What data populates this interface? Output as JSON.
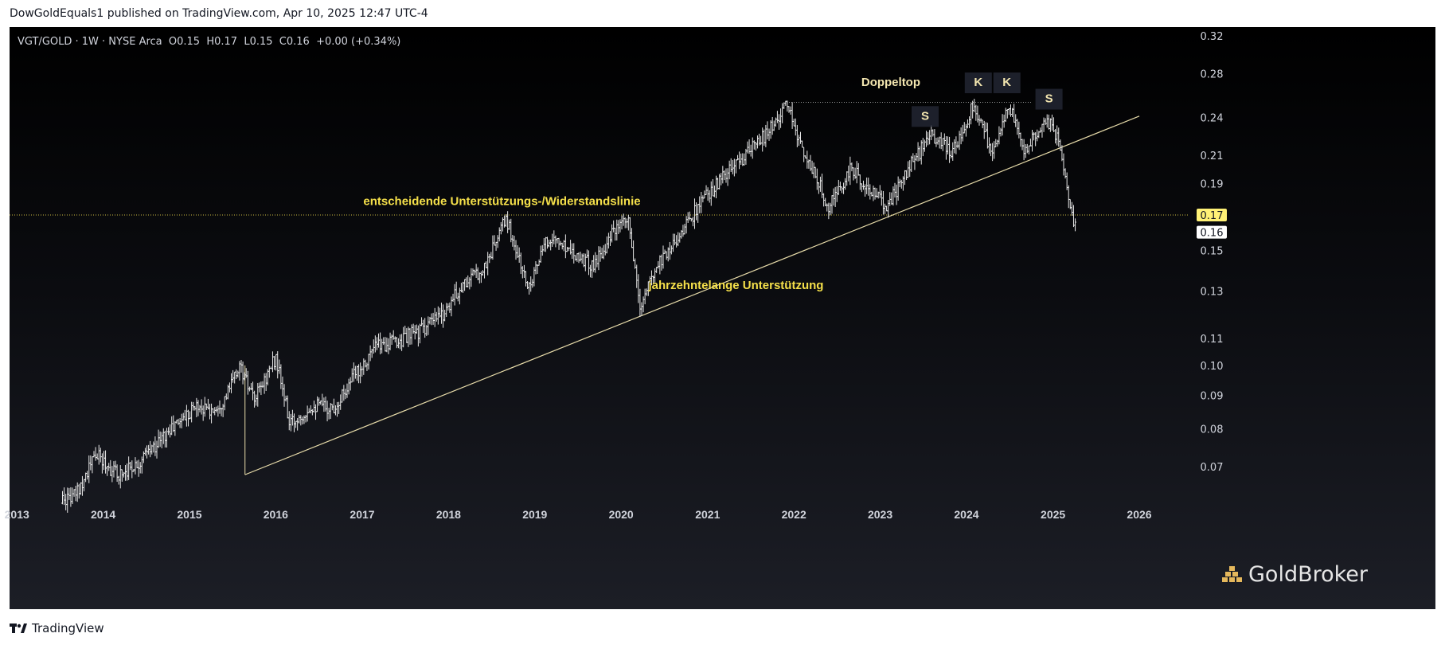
{
  "header": {
    "published_line": "DowGoldEquals1 published on TradingView.com, Apr 10, 2025 12:47 UTC-4"
  },
  "chart": {
    "symbol_line": "VGT/GOLD · 1W · NYSE Arca  O0.15  H0.17  L0.15  C0.16  +0.00 (+0.34%)"
  },
  "watermark": {
    "brand": "GoldBroker",
    "icon": "gold-bars-icon"
  },
  "footer": {
    "brand": "TradingView",
    "icon": "tradingview-logo-icon"
  },
  "colors": {
    "background_top": "#000000",
    "background_bottom": "#1c1e26",
    "bars": "#e8e8e8",
    "trendline": "#e8dcaa",
    "annotation_yellow": "#f5e04a",
    "label_box": "#222633",
    "price_label_bg": "#fff176"
  },
  "chart_data": {
    "type": "ohlc",
    "scale": "log",
    "ylim": [
      0.062,
      0.33
    ],
    "xlim": [
      "2012-12-01",
      "2026-06-15"
    ],
    "y_ticks": [
      "0.32",
      "0.28",
      "0.24",
      "0.21",
      "0.19",
      "0.17",
      "0.16",
      "0.15",
      "0.13",
      "0.11",
      "0.10",
      "0.09",
      "0.08",
      "0.07"
    ],
    "x_ticks": [
      "2013",
      "2014",
      "2015",
      "2016",
      "2017",
      "2018",
      "2019",
      "2020",
      "2021",
      "2022",
      "2023",
      "2024",
      "2025",
      "2026"
    ],
    "price_labels": {
      "support_level": "0.17",
      "last_close": "0.16"
    },
    "series": [
      {
        "points": [
          [
            "2013-06-01",
            0.062
          ],
          [
            "2013-09-01",
            0.063
          ],
          [
            "2013-12-01",
            0.073
          ],
          [
            "2014-03-01",
            0.068
          ],
          [
            "2014-06-01",
            0.071
          ],
          [
            "2014-09-01",
            0.077
          ],
          [
            "2014-12-01",
            0.083
          ],
          [
            "2015-02-01",
            0.087
          ],
          [
            "2015-04-01",
            0.085
          ],
          [
            "2015-06-01",
            0.089
          ],
          [
            "2015-08-01",
            0.1
          ],
          [
            "2015-10-01",
            0.088
          ],
          [
            "2016-01-01",
            0.103
          ],
          [
            "2016-03-01",
            0.081
          ],
          [
            "2016-06-01",
            0.087
          ],
          [
            "2016-09-01",
            0.086
          ],
          [
            "2016-12-01",
            0.097
          ],
          [
            "2017-03-01",
            0.107
          ],
          [
            "2017-06-01",
            0.109
          ],
          [
            "2017-09-01",
            0.113
          ],
          [
            "2017-12-01",
            0.119
          ],
          [
            "2018-03-01",
            0.133
          ],
          [
            "2018-06-01",
            0.141
          ],
          [
            "2018-09-01",
            0.168
          ],
          [
            "2018-12-01",
            0.132
          ],
          [
            "2019-03-01",
            0.157
          ],
          [
            "2019-06-01",
            0.151
          ],
          [
            "2019-09-01",
            0.142
          ],
          [
            "2019-12-01",
            0.16
          ],
          [
            "2020-02-01",
            0.166
          ],
          [
            "2020-03-20",
            0.122
          ],
          [
            "2020-06-01",
            0.143
          ],
          [
            "2020-09-01",
            0.158
          ],
          [
            "2020-12-01",
            0.177
          ],
          [
            "2021-03-01",
            0.193
          ],
          [
            "2021-06-01",
            0.208
          ],
          [
            "2021-09-01",
            0.225
          ],
          [
            "2021-12-01",
            0.25
          ],
          [
            "2022-03-01",
            0.205
          ],
          [
            "2022-06-01",
            0.175
          ],
          [
            "2022-09-01",
            0.2
          ],
          [
            "2022-12-01",
            0.183
          ],
          [
            "2023-02-01",
            0.176
          ],
          [
            "2023-05-01",
            0.2
          ],
          [
            "2023-08-01",
            0.225
          ],
          [
            "2023-11-01",
            0.212
          ],
          [
            "2024-02-01",
            0.252
          ],
          [
            "2024-04-15",
            0.213
          ],
          [
            "2024-07-01",
            0.25
          ],
          [
            "2024-09-01",
            0.212
          ],
          [
            "2024-12-01",
            0.24
          ],
          [
            "2025-02-01",
            0.218
          ],
          [
            "2025-03-15",
            0.178
          ],
          [
            "2025-04-10",
            0.16
          ]
        ]
      }
    ],
    "trendlines": [
      {
        "from": [
          "2015-08-24",
          0.068
        ],
        "to": [
          "2026-01-01",
          0.241
        ]
      }
    ],
    "hlines": [
      {
        "y": 0.17,
        "style": "dotted"
      },
      {
        "y": 0.253,
        "from": "2021-12-01",
        "to": "2024-10-01",
        "style": "dotted"
      }
    ],
    "annotations": [
      {
        "text": "entscheidende Unterstützungs-/Widerstandslinie",
        "x": "2018-08-15",
        "y": 0.176,
        "color": "yellow"
      },
      {
        "text": "jahrzehntelange Unterstützung",
        "x": "2021-05-01",
        "y": 0.131,
        "color": "yellow"
      },
      {
        "text": "Doppeltop",
        "x": "2023-02-15",
        "y": 0.268,
        "color": "cream"
      },
      {
        "text": "S",
        "x": "2023-07-10",
        "y": 0.238,
        "color": "cream",
        "boxed": true
      },
      {
        "text": "K",
        "x": "2024-02-20",
        "y": 0.268,
        "color": "cream",
        "boxed": true
      },
      {
        "text": "K",
        "x": "2024-06-20",
        "y": 0.268,
        "color": "cream",
        "boxed": true
      },
      {
        "text": "S",
        "x": "2024-12-15",
        "y": 0.253,
        "color": "cream",
        "boxed": true
      }
    ]
  }
}
